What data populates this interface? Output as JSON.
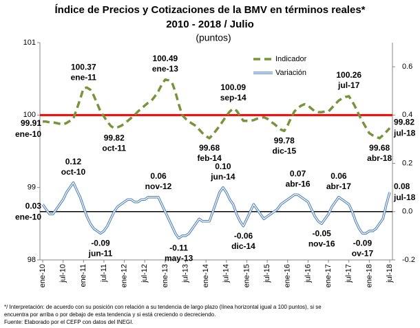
{
  "chart_data": {
    "type": "line",
    "title": "Índice de Precios y Cotizaciones de la BMV en términos reales*",
    "title_line2": "2010 - 2018 / Julio",
    "subtitle": "(puntos)",
    "categories": [
      "ene-10",
      null,
      null,
      null,
      null,
      null,
      "jul-10",
      null,
      null,
      null,
      null,
      null,
      "ene-11",
      null,
      null,
      null,
      null,
      null,
      "jul-11",
      null,
      null,
      null,
      null,
      null,
      "ene-12",
      null,
      null,
      null,
      null,
      null,
      "jul-12",
      null,
      null,
      null,
      null,
      null,
      "ene-13",
      null,
      null,
      null,
      null,
      null,
      "jul-13",
      null,
      null,
      null,
      null,
      null,
      "ene-14",
      null,
      null,
      null,
      null,
      null,
      "jul-14",
      null,
      null,
      null,
      null,
      null,
      "ene-15",
      null,
      null,
      null,
      null,
      null,
      "jul-15",
      null,
      null,
      null,
      null,
      null,
      "ene-16",
      null,
      null,
      null,
      null,
      null,
      "jul-16",
      null,
      null,
      null,
      null,
      null,
      "ene-17",
      null,
      null,
      null,
      null,
      null,
      "jul-17",
      null,
      null,
      null,
      null,
      null,
      "ene-18",
      null,
      null,
      null,
      null,
      null,
      "jul-18"
    ],
    "series": [
      {
        "name": "Indicador",
        "color": "#77933c",
        "axis": "y",
        "style": "dashed",
        "values": [
          99.91,
          99.91,
          99.9,
          99.9,
          99.89,
          99.88,
          99.87,
          99.89,
          99.92,
          99.95,
          100.08,
          100.22,
          100.37,
          100.38,
          100.35,
          100.27,
          100.16,
          100.05,
          99.98,
          99.91,
          99.85,
          99.82,
          99.83,
          99.85,
          99.88,
          99.92,
          99.96,
          100.0,
          100.05,
          100.09,
          100.13,
          100.17,
          100.2,
          100.26,
          100.33,
          100.42,
          100.49,
          100.48,
          100.45,
          100.32,
          100.15,
          100.0,
          99.95,
          99.91,
          99.88,
          99.85,
          99.8,
          99.75,
          99.71,
          99.68,
          99.73,
          99.79,
          99.85,
          99.92,
          99.99,
          100.05,
          100.09,
          100.06,
          99.99,
          99.92,
          99.92,
          99.92,
          99.93,
          99.95,
          99.96,
          99.97,
          99.95,
          99.91,
          99.88,
          99.84,
          99.8,
          99.78,
          99.86,
          99.96,
          100.05,
          100.1,
          100.13,
          100.15,
          100.13,
          100.09,
          100.05,
          100.04,
          100.04,
          100.05,
          100.05,
          100.1,
          100.15,
          100.2,
          100.23,
          100.25,
          100.26,
          100.19,
          100.1,
          100.0,
          99.91,
          99.83,
          99.75,
          99.72,
          99.7,
          99.68,
          99.72,
          99.77,
          99.82
        ]
      },
      {
        "name": "Variación",
        "color": "#4f81bd",
        "axis": "y2",
        "style": "double",
        "values": [
          0.03,
          0.01,
          -0.01,
          -0.01,
          0.01,
          0.03,
          0.05,
          0.08,
          0.1,
          0.12,
          0.09,
          0.06,
          0.02,
          -0.02,
          -0.05,
          -0.07,
          -0.08,
          -0.09,
          -0.08,
          -0.06,
          -0.03,
          0.0,
          0.02,
          0.03,
          0.04,
          0.05,
          0.05,
          0.04,
          0.04,
          0.05,
          0.05,
          0.06,
          0.06,
          0.06,
          0.06,
          0.03,
          0.0,
          -0.03,
          -0.06,
          -0.09,
          -0.11,
          -0.1,
          -0.1,
          -0.09,
          -0.07,
          -0.05,
          -0.03,
          -0.04,
          -0.04,
          -0.04,
          0.0,
          0.04,
          0.08,
          0.1,
          0.08,
          0.05,
          0.03,
          -0.01,
          -0.04,
          -0.06,
          -0.03,
          0.0,
          0.03,
          0.01,
          -0.01,
          -0.03,
          -0.02,
          -0.01,
          0.0,
          0.01,
          0.03,
          0.04,
          0.05,
          0.06,
          0.07,
          0.07,
          0.06,
          0.05,
          0.04,
          0.01,
          -0.02,
          -0.04,
          -0.05,
          -0.03,
          -0.01,
          0.02,
          0.04,
          0.06,
          0.05,
          0.04,
          0.03,
          0.0,
          -0.04,
          -0.07,
          -0.09,
          -0.09,
          -0.08,
          -0.08,
          -0.07,
          -0.05,
          -0.03,
          0.03,
          0.08
        ]
      }
    ],
    "ylim": [
      98,
      101
    ],
    "yticks": [
      98,
      99,
      100,
      101
    ],
    "y2lim": [
      -0.2,
      0.7
    ],
    "y2ticks": [
      {
        "value": -0.2,
        "label": "-0.2"
      },
      {
        "value": 0,
        "label": "0.0"
      },
      {
        "value": 0.2,
        "label": "0.2"
      },
      {
        "value": 0.4,
        "label": "0.4"
      },
      {
        "value": 0.6,
        "label": "0.6"
      }
    ],
    "reference_lines": [
      {
        "value": 100,
        "axis": "y",
        "color": "#ff0000"
      },
      {
        "value": 0,
        "axis": "y2",
        "color": "#000000"
      }
    ],
    "legend": "upper right",
    "annotations": [
      {
        "series": 0,
        "index": 0,
        "label": "99.91",
        "date": "ene-10"
      },
      {
        "series": 0,
        "index": 12,
        "label": "100.37",
        "date": "ene-11"
      },
      {
        "series": 0,
        "index": 21,
        "label": "99.82",
        "date": "oct-11"
      },
      {
        "series": 0,
        "index": 36,
        "label": "100.49",
        "date": "ene-13"
      },
      {
        "series": 0,
        "index": 49,
        "label": "99.68",
        "date": "feb-14"
      },
      {
        "series": 0,
        "index": 56,
        "label": "100.09",
        "date": "sep-14"
      },
      {
        "series": 0,
        "index": 71,
        "label": "99.78",
        "date": "dic-15"
      },
      {
        "series": 0,
        "index": 90,
        "label": "100.26",
        "date": "jul-17"
      },
      {
        "series": 0,
        "index": 99,
        "label": "99.68",
        "date": "abr-18"
      },
      {
        "series": 0,
        "index": 102,
        "label": "99.82",
        "date": "jul-18"
      },
      {
        "series": 1,
        "index": 0,
        "label": "0.03",
        "date": "ene-10"
      },
      {
        "series": 1,
        "index": 9,
        "label": "0.12",
        "date": "oct-10"
      },
      {
        "series": 1,
        "index": 17,
        "label": "-0.09",
        "date": "jun-11"
      },
      {
        "series": 1,
        "index": 34,
        "label": "0.06",
        "date": "nov-12"
      },
      {
        "series": 1,
        "index": 40,
        "label": "-0.11",
        "date": "may-13"
      },
      {
        "series": 1,
        "index": 53,
        "label": "0.10",
        "date": "jun-14"
      },
      {
        "series": 1,
        "index": 59,
        "label": "-0.06",
        "date": "dic-14"
      },
      {
        "series": 1,
        "index": 75,
        "label": "0.07",
        "date": "abr-16"
      },
      {
        "series": 1,
        "index": 82,
        "label": "-0.05",
        "date": "nov-16"
      },
      {
        "series": 1,
        "index": 87,
        "label": "0.06",
        "date": "abr-17"
      },
      {
        "series": 1,
        "index": 94,
        "label": "-0.09",
        "date": "ov-17"
      },
      {
        "series": 1,
        "index": 102,
        "label": "0.08",
        "date": "jul-18"
      }
    ],
    "notes": [
      "*/ Interpretación: de acuerdo con su posición con relación a su tendencia de largo plazo (línea horizontal igual a 100 puntos), si se",
      "encuentra por arriba o por debajo de esta tendencia y si está creciendo o decreciendo.",
      "Fuente: Elaborado por el CEFP con datos del INEGI."
    ]
  }
}
